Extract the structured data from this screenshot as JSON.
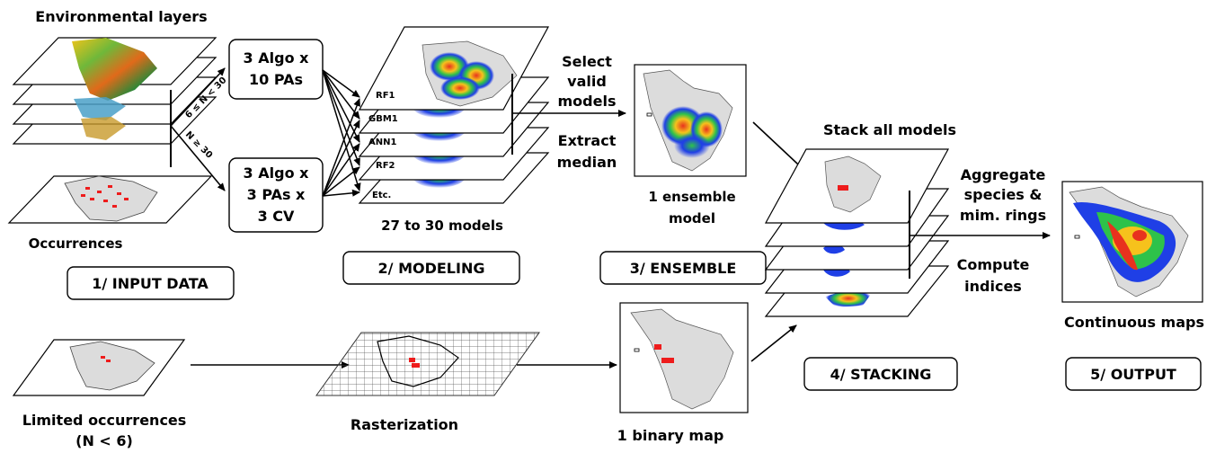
{
  "input": {
    "env_layers_label": "Environmental layers",
    "occurrences_label": "Occurrences",
    "section_label": "1/ INPUT DATA",
    "branch_small": "6 ≤ N < 30",
    "branch_large": "N ≥ 30",
    "limited_label_1": "Limited occurrences",
    "limited_label_2": "(N < 6)"
  },
  "modeling": {
    "box_a_line1": "3 Algo x",
    "box_a_line2": "10 PAs",
    "box_b_line1": "3 Algo x",
    "box_b_line2": "3 PAs x",
    "box_b_line3": "3 CV",
    "layer_labels": [
      "RF1",
      "GBM1",
      "ANN1",
      "RF2",
      "Etc."
    ],
    "count_label": "27 to 30 models",
    "section_label": "2/ MODELING"
  },
  "ensemble": {
    "step1_line1": "Select",
    "step1_line2": "valid",
    "step1_line3": "models",
    "step2_line1": "Extract",
    "step2_line2": "median",
    "result_line1": "1 ensemble",
    "result_line2": "model",
    "section_label": "3/ ENSEMBLE"
  },
  "raster": {
    "rasterization_label": "Rasterization",
    "binary_label": "1 binary map"
  },
  "stacking": {
    "title": "Stack all models",
    "section_label": "4/ STACKING",
    "aggregate_line1": "Aggregate",
    "aggregate_line2": "species &",
    "aggregate_line3": "mim. rings",
    "compute_line1": "Compute",
    "compute_line2": "indices"
  },
  "output": {
    "continuous_label": "Continuous maps",
    "section_label": "5/ OUTPUT"
  },
  "colors": {
    "occurrence_red": "#ee1c1c",
    "hot_red": "#e8321e",
    "warm_green": "#2ec24a",
    "cool_blue": "#1f3fe6",
    "land_grey": "#dcdcdc"
  }
}
